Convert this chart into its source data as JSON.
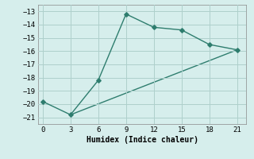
{
  "line1_x": [
    0,
    3,
    6,
    9,
    12,
    15,
    18,
    21
  ],
  "line1_y": [
    -19.8,
    -20.8,
    -18.2,
    -13.2,
    -14.2,
    -14.4,
    -15.5,
    -15.9
  ],
  "line2_x": [
    3,
    21
  ],
  "line2_y": [
    -20.8,
    -15.9
  ],
  "color": "#2e7d6e",
  "bg_color": "#d6eeec",
  "grid_color": "#aed0cc",
  "xlabel": "Humidex (Indice chaleur)",
  "xlim": [
    -0.5,
    22
  ],
  "ylim": [
    -21.5,
    -12.5
  ],
  "xticks": [
    0,
    3,
    6,
    9,
    12,
    15,
    18,
    21
  ],
  "yticks": [
    -21,
    -20,
    -19,
    -18,
    -17,
    -16,
    -15,
    -14,
    -13
  ],
  "marker": "D",
  "markersize": 2.8,
  "linewidth": 1.0
}
